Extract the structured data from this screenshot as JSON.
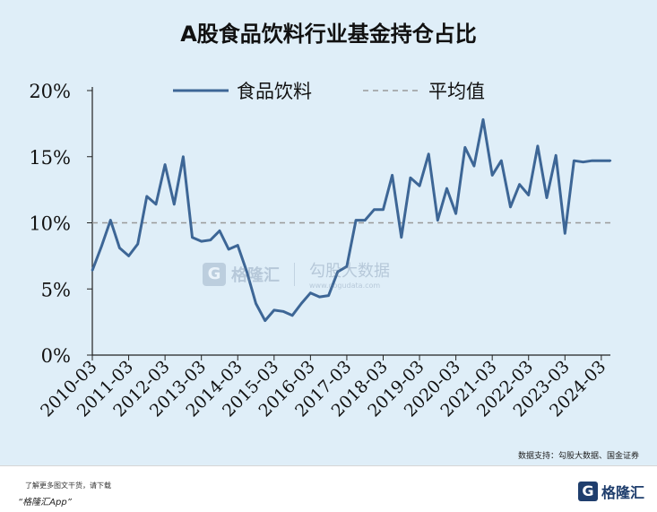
{
  "title": "A股食品饮料行业基金持仓占比",
  "source": "数据支持：勾股大数据、国金证券",
  "footer": {
    "tip": "了解更多图文干货，请下载",
    "app": "“格隆汇App”",
    "logo_letter": "G",
    "logo_text": "格隆汇"
  },
  "watermark": {
    "letter": "G",
    "text1": "格隆汇",
    "text2": "勾股大数据",
    "url": "www.gogudata.com"
  },
  "colors": {
    "line": "#3d6696",
    "average": "#9a9a9a",
    "background": "#dfeef8"
  },
  "chart_data": {
    "type": "line",
    "title": "A股食品饮料行业基金持仓占比",
    "ylim": [
      0,
      20
    ],
    "yticks": [
      "0%",
      "5%",
      "10%",
      "15%",
      "20%"
    ],
    "xtick_labels": [
      "2010-03",
      "2011-03",
      "2012-03",
      "2013-03",
      "2014-03",
      "2015-03",
      "2016-03",
      "2017-03",
      "2018-03",
      "2019-03",
      "2020-03",
      "2021-03",
      "2022-03",
      "2023-03",
      "2024-03"
    ],
    "grid": false,
    "legend_position": "top",
    "series": [
      {
        "name": "食品饮料",
        "style": "solid",
        "x": [
          "2010-03",
          "2010-06",
          "2010-09",
          "2010-12",
          "2011-03",
          "2011-06",
          "2011-09",
          "2011-12",
          "2012-03",
          "2012-06",
          "2012-09",
          "2012-12",
          "2013-03",
          "2013-06",
          "2013-09",
          "2013-12",
          "2014-03",
          "2014-06",
          "2014-09",
          "2014-12",
          "2015-03",
          "2015-06",
          "2015-09",
          "2015-12",
          "2016-03",
          "2016-06",
          "2016-09",
          "2016-12",
          "2017-03",
          "2017-06",
          "2017-09",
          "2017-12",
          "2018-03",
          "2018-06",
          "2018-09",
          "2018-12",
          "2019-03",
          "2019-06",
          "2019-09",
          "2019-12",
          "2020-03",
          "2020-06",
          "2020-09",
          "2020-12",
          "2021-03",
          "2021-06",
          "2021-09",
          "2021-12",
          "2022-03",
          "2022-06",
          "2022-09",
          "2022-12",
          "2023-03",
          "2023-06",
          "2023-09",
          "2023-12",
          "2024-03",
          "2024-06"
        ],
        "values": [
          6.4,
          8.2,
          10.2,
          8.1,
          7.5,
          8.4,
          12.0,
          11.4,
          14.4,
          11.4,
          15.0,
          8.9,
          8.6,
          8.7,
          9.4,
          8.0,
          8.3,
          6.3,
          3.9,
          2.6,
          3.4,
          3.3,
          3.0,
          3.9,
          4.7,
          4.4,
          4.5,
          6.3,
          6.7,
          10.2,
          10.2,
          11.0,
          11.0,
          13.6,
          8.9,
          13.4,
          12.8,
          15.2,
          10.2,
          12.6,
          10.7,
          15.7,
          14.3,
          17.8,
          13.6,
          14.7,
          11.2,
          12.9,
          12.1,
          15.8,
          11.9,
          15.1,
          9.2,
          14.7,
          14.6,
          14.7,
          14.7,
          14.7
        ]
      },
      {
        "name": "平均值",
        "style": "dashed",
        "value": 10.0
      }
    ]
  }
}
